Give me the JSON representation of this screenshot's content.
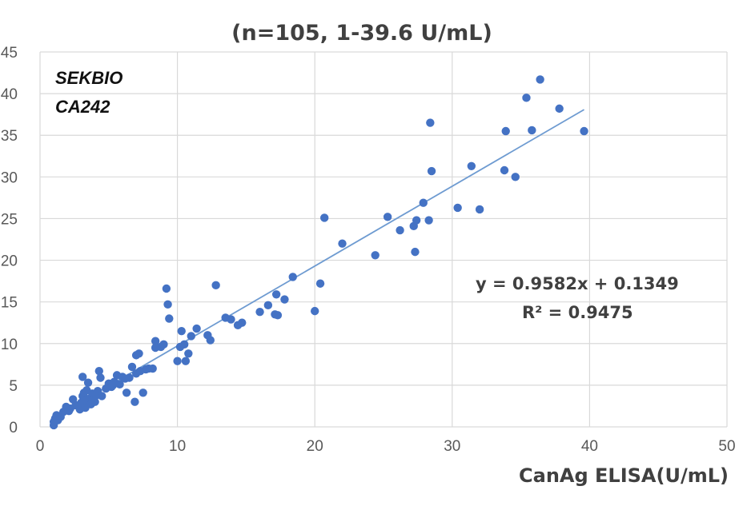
{
  "chart_data": {
    "type": "scatter",
    "title": "(n=105, 1-39.6 U/mL)",
    "xlabel": "CanAg ELISA(U/mL)",
    "ylabel": "",
    "xlim": [
      0,
      50
    ],
    "ylim": [
      0,
      45
    ],
    "x_ticks": [
      "0",
      "10",
      "20",
      "30",
      "40",
      "50"
    ],
    "y_ticks": [
      "0",
      "5",
      "10",
      "15",
      "20",
      "25",
      "30",
      "35",
      "40",
      "45"
    ],
    "grid": true,
    "legend": "none",
    "annotations": {
      "brand_line1": "SEKBIO",
      "brand_line2": "CA242",
      "equation": "y = 0.9582x + 0.1349",
      "r_squared": "R² = 0.9475"
    },
    "trendline": {
      "slope": 0.9582,
      "intercept": 0.1349,
      "x_range": [
        1,
        39.6
      ]
    },
    "colors": {
      "points": "#4472C4",
      "trendline": "#6E9BD1",
      "grid": "#D9D9D9"
    },
    "points": [
      [
        1.0,
        0.2
      ],
      [
        1.0,
        0.6
      ],
      [
        1.1,
        1.0
      ],
      [
        1.2,
        1.4
      ],
      [
        1.5,
        1.2
      ],
      [
        1.7,
        1.8
      ],
      [
        1.9,
        2.4
      ],
      [
        2.2,
        2.2
      ],
      [
        2.4,
        3.3
      ],
      [
        2.6,
        2.6
      ],
      [
        2.9,
        2.1
      ],
      [
        3.0,
        2.9
      ],
      [
        3.1,
        3.7
      ],
      [
        3.1,
        6.0
      ],
      [
        3.2,
        4.1
      ],
      [
        3.3,
        2.3
      ],
      [
        3.4,
        3.2
      ],
      [
        3.4,
        4.4
      ],
      [
        3.5,
        5.3
      ],
      [
        3.6,
        3.4
      ],
      [
        3.8,
        4.0
      ],
      [
        4.0,
        3.0
      ],
      [
        4.1,
        3.8
      ],
      [
        4.2,
        4.3
      ],
      [
        4.3,
        6.7
      ],
      [
        4.4,
        5.9
      ],
      [
        4.5,
        3.7
      ],
      [
        5.0,
        5.2
      ],
      [
        5.2,
        4.8
      ],
      [
        5.4,
        5.4
      ],
      [
        5.6,
        6.2
      ],
      [
        5.8,
        5.1
      ],
      [
        6.2,
        5.8
      ],
      [
        6.3,
        4.1
      ],
      [
        6.5,
        5.9
      ],
      [
        6.7,
        7.2
      ],
      [
        6.9,
        3.0
      ],
      [
        7.0,
        6.4
      ],
      [
        7.0,
        8.6
      ],
      [
        7.2,
        8.8
      ],
      [
        7.3,
        6.7
      ],
      [
        7.5,
        4.1
      ],
      [
        7.9,
        7.0
      ],
      [
        8.2,
        7.0
      ],
      [
        8.4,
        10.3
      ],
      [
        8.4,
        9.5
      ],
      [
        8.8,
        9.6
      ],
      [
        9.2,
        16.6
      ],
      [
        9.3,
        14.7
      ],
      [
        9.4,
        13.0
      ],
      [
        10.0,
        7.9
      ],
      [
        10.2,
        9.6
      ],
      [
        10.3,
        11.5
      ],
      [
        10.5,
        9.9
      ],
      [
        10.6,
        7.9
      ],
      [
        10.8,
        8.8
      ],
      [
        11.4,
        11.8
      ],
      [
        12.2,
        11.0
      ],
      [
        12.4,
        10.4
      ],
      [
        12.8,
        17.0
      ],
      [
        13.9,
        12.9
      ],
      [
        14.4,
        12.2
      ],
      [
        14.7,
        12.5
      ],
      [
        16.0,
        13.8
      ],
      [
        16.6,
        14.6
      ],
      [
        17.1,
        13.5
      ],
      [
        17.3,
        13.4
      ],
      [
        17.2,
        15.9
      ],
      [
        17.8,
        15.3
      ],
      [
        20.0,
        13.9
      ],
      [
        20.4,
        17.2
      ],
      [
        20.7,
        25.1
      ],
      [
        22.0,
        22.0
      ],
      [
        24.4,
        20.6
      ],
      [
        25.3,
        25.2
      ],
      [
        26.2,
        23.6
      ],
      [
        27.2,
        24.1
      ],
      [
        27.3,
        21.0
      ],
      [
        27.4,
        24.8
      ],
      [
        27.9,
        26.9
      ],
      [
        28.3,
        24.8
      ],
      [
        28.5,
        30.7
      ],
      [
        28.4,
        36.5
      ],
      [
        30.4,
        26.3
      ],
      [
        31.4,
        31.3
      ],
      [
        32.0,
        26.1
      ],
      [
        33.8,
        30.8
      ],
      [
        33.9,
        35.5
      ],
      [
        34.6,
        30.0
      ],
      [
        35.4,
        39.5
      ],
      [
        35.8,
        35.6
      ],
      [
        36.4,
        41.7
      ],
      [
        37.8,
        38.2
      ],
      [
        39.6,
        35.5
      ],
      [
        1.3,
        0.8
      ],
      [
        2.1,
        1.9
      ],
      [
        3.7,
        2.7
      ],
      [
        4.8,
        4.6
      ],
      [
        5.3,
        5.0
      ],
      [
        6.0,
        6.0
      ],
      [
        7.7,
        6.9
      ],
      [
        9.0,
        9.9
      ],
      [
        11.0,
        10.9
      ],
      [
        13.5,
        13.1
      ],
      [
        18.4,
        18.0
      ]
    ]
  }
}
